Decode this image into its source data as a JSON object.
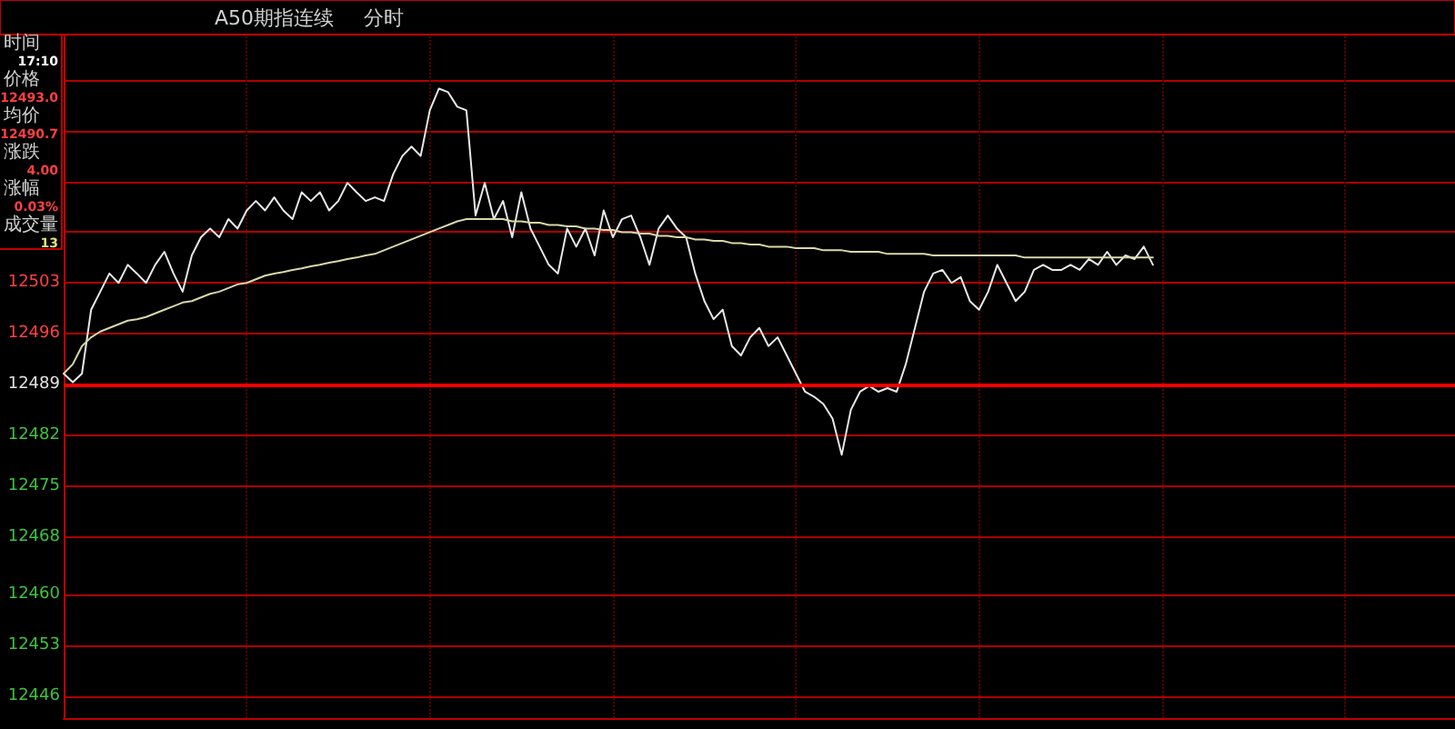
{
  "chart_data": {
    "type": "line",
    "title": "A50期指连续",
    "subtitle": "分时",
    "annotations": [
      "时间",
      "17:10",
      "价格",
      "12493.0",
      "均价",
      "12490.7",
      "涨跌",
      "4.00",
      "涨幅",
      "0.03%",
      "成交量",
      "13"
    ],
    "categories": [
      null,
      null,
      null,
      null,
      null,
      null,
      null,
      null,
      null,
      null,
      null,
      null,
      null,
      null,
      null,
      null,
      null,
      null,
      null,
      null,
      null,
      null,
      null,
      null,
      null,
      null,
      null,
      null,
      null,
      null,
      null,
      null,
      null,
      null,
      null,
      null,
      null,
      null,
      null,
      null,
      null,
      null,
      null,
      null,
      null,
      null,
      null,
      null,
      null,
      null,
      null,
      null,
      null,
      null,
      null,
      null,
      null,
      null,
      null,
      null,
      null,
      null,
      null,
      null,
      null,
      null,
      null,
      null,
      null,
      null,
      null,
      null,
      null,
      null,
      null,
      null,
      null,
      null,
      null,
      null,
      null,
      null,
      null,
      null,
      null,
      null,
      null,
      null,
      null,
      null,
      null,
      null,
      null,
      null,
      null,
      null,
      null,
      null,
      null,
      null,
      null,
      null,
      null,
      null,
      null,
      null,
      null,
      null,
      null,
      null,
      null,
      null,
      null,
      null,
      null,
      null,
      null,
      null,
      null,
      null,
      null,
      null,
      null,
      null,
      null,
      null,
      null,
      null,
      null,
      null,
      null,
      null,
      null,
      null,
      null,
      null,
      null,
      null,
      null,
      null,
      null,
      null,
      null,
      null,
      null,
      null,
      null,
      null,
      null,
      null,
      null,
      null,
      null
    ],
    "series": [
      {
        "color": "#e8e8e8",
        "values": [
          12490.5,
          12489.3,
          12490.5,
          12499.3,
          12501.8,
          12504.3,
          12503,
          12505.5,
          12504.3,
          12503,
          12505.5,
          12507.3,
          12504.3,
          12501.8,
          12506.8,
          12509.3,
          12510.5,
          12509.3,
          12511.8,
          12510.5,
          12513,
          12514.3,
          12513,
          12514.8,
          12513,
          12511.8,
          12515.5,
          12514.3,
          12515.5,
          12513,
          12514.3,
          12516.8,
          12515.5,
          12514.3,
          12514.8,
          12514.3,
          12518,
          12520.5,
          12521.8,
          12520.5,
          12526.8,
          12529.8,
          12529.3,
          12527.3,
          12526.8,
          12512.3,
          12516.8,
          12511.8,
          12514.3,
          12509.3,
          12515.5,
          12510.5,
          12508,
          12505.5,
          12504.3,
          12510.5,
          12508,
          12510.5,
          12506.8,
          12513,
          12509.3,
          12511.8,
          12512.3,
          12509.3,
          12505.5,
          12510.5,
          12512.3,
          12510.5,
          12509.3,
          12504.3,
          12500.5,
          12498,
          12499.3,
          12494.3,
          12493,
          12495.5,
          12496.8,
          12494.3,
          12495.5,
          12493,
          12490.5,
          12488,
          12487.3,
          12486.3,
          12484.3,
          12479.3,
          12485.5,
          12488,
          12488.8,
          12488,
          12488.5,
          12488,
          12491.8,
          12496.8,
          12501.8,
          12504.3,
          12504.8,
          12503,
          12503.8,
          12500.5,
          12499.3,
          12501.8,
          12505.5,
          12503,
          12500.5,
          12501.8,
          12504.8,
          12505.5,
          12504.8,
          12504.8,
          12505.5,
          12504.8,
          12506.3,
          12505.5,
          12507.3,
          12505.5,
          12506.8,
          12506.3,
          12508,
          12505.5,
          null,
          null,
          null,
          null,
          null,
          null,
          null,
          null,
          null,
          null,
          null,
          null,
          null,
          null,
          null,
          null,
          null,
          null,
          null,
          null,
          null,
          null,
          null,
          null,
          null,
          null,
          null,
          null,
          null,
          null,
          null,
          null,
          null
        ]
      },
      {
        "color": "#d8d8a8",
        "values": [
          12490.5,
          12491.8,
          12494.3,
          12495.5,
          12496.3,
          12496.8,
          12497.3,
          12497.8,
          12498,
          12498.3,
          12498.8,
          12499.3,
          12499.8,
          12500.3,
          12500.5,
          12501,
          12501.5,
          12501.8,
          12502.3,
          12502.8,
          12503,
          12503.5,
          12504,
          12504.3,
          12504.5,
          12504.8,
          12505,
          12505.3,
          12505.5,
          12505.8,
          12506,
          12506.3,
          12506.5,
          12506.8,
          12507,
          12507.5,
          12508,
          12508.5,
          12509,
          12509.5,
          12510,
          12510.5,
          12511,
          12511.5,
          12511.8,
          12511.8,
          12511.8,
          12511.8,
          12511.8,
          12511.5,
          12511.5,
          12511.3,
          12511.3,
          12511,
          12511,
          12510.8,
          12510.8,
          12510.5,
          12510.5,
          12510.3,
          12510.3,
          12510,
          12510,
          12509.8,
          12509.8,
          12509.5,
          12509.5,
          12509.3,
          12509.3,
          12509,
          12509,
          12508.8,
          12508.8,
          12508.5,
          12508.5,
          12508.3,
          12508.3,
          12508,
          12508,
          12508,
          12507.8,
          12507.8,
          12507.8,
          12507.5,
          12507.5,
          12507.5,
          12507.3,
          12507.3,
          12507.3,
          12507.3,
          12507,
          12507,
          12507,
          12507,
          12507,
          12506.8,
          12506.8,
          12506.8,
          12506.8,
          12506.8,
          12506.8,
          12506.8,
          12506.8,
          12506.8,
          12506.8,
          12506.5,
          12506.5,
          12506.5,
          12506.5,
          12506.5,
          12506.5,
          12506.5,
          12506.5,
          12506.5,
          12506.5,
          12506.5,
          12506.5,
          12506.5,
          12506.5,
          12506.5,
          null,
          null,
          null,
          null,
          null,
          null,
          null,
          null,
          null,
          null,
          null,
          null,
          null,
          null,
          null,
          null,
          null,
          null,
          null,
          null,
          null,
          null,
          null,
          null,
          null,
          null,
          null,
          null,
          null,
          null,
          null,
          null,
          null
        ]
      }
    ],
    "ylim": [
      12443,
      12537
    ],
    "yticks": [
      12446,
      12453,
      12460,
      12468,
      12475,
      12482,
      12489,
      12496,
      12503,
      {
        "value": 12510,
        "label": null
      },
      {
        "value": 12517,
        "label": null
      },
      {
        "value": 12524,
        "label": null
      },
      {
        "value": 12531,
        "label": null
      }
    ],
    "ref_lines": [
      {
        "axis": "y",
        "value": 12489,
        "color": "#ff0000"
      }
    ],
    "grid": true,
    "line_style": "solid"
  }
}
